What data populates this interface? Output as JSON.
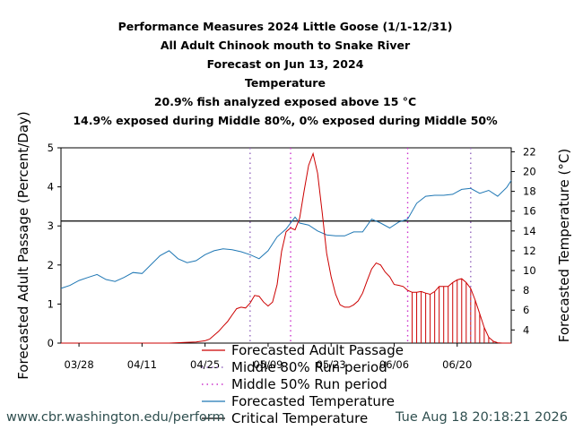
{
  "chart_data": {
    "type": "line",
    "title": [
      "Performance Measures 2024 Little Goose (1/1-12/31)",
      "All Adult Chinook mouth to Snake River",
      "Forecast on Jun 13, 2024",
      "Temperature",
      "20.9% fish analyzed exposed above 15 °C",
      "14.9% exposed during Middle 80%, 0% exposed during Middle 50%"
    ],
    "ylabel": "Forecasted Adult Passage (Percent/Day)",
    "y2label": "Forecasted Temperature (°C)",
    "xlim": [
      0,
      100
    ],
    "ylim": [
      0,
      5
    ],
    "y2lim": [
      2.67,
      22.4
    ],
    "x_ticks": [
      {
        "x": 4,
        "label": "03/28"
      },
      {
        "x": 18,
        "label": "04/11"
      },
      {
        "x": 32,
        "label": "04/25"
      },
      {
        "x": 46,
        "label": "05/09"
      },
      {
        "x": 60,
        "label": "05/23"
      },
      {
        "x": 74,
        "label": "06/06"
      },
      {
        "x": 88,
        "label": "06/20"
      }
    ],
    "y_ticks": [
      0,
      1,
      2,
      3,
      4,
      5
    ],
    "y2_ticks": [
      4,
      6,
      8,
      10,
      12,
      14,
      16,
      18,
      20,
      22
    ],
    "run_period_80": [
      42,
      91
    ],
    "run_period_50": [
      51,
      77
    ],
    "critical_temperature": 15,
    "forecast_start_x": 78,
    "series": [
      {
        "name": "Forecasted Adult Passage",
        "color": "#cc0000",
        "axis": "left",
        "x": [
          0,
          20,
          24,
          28,
          30,
          32,
          33,
          34,
          35,
          36,
          37,
          38,
          39,
          40,
          41,
          42,
          43,
          44,
          45,
          46,
          47,
          48,
          49,
          50,
          51,
          52,
          53,
          54,
          55,
          56,
          57,
          58,
          59,
          60,
          61,
          62,
          63,
          64,
          65,
          66,
          67,
          68,
          69,
          70,
          71,
          72,
          73,
          74,
          75,
          76,
          77,
          78,
          79,
          80,
          81,
          82,
          83,
          84,
          85,
          86,
          87,
          88,
          89,
          90,
          91,
          92,
          93,
          94,
          95,
          96,
          97,
          98,
          99,
          100
        ],
        "values": [
          0,
          0,
          0,
          0.02,
          0.03,
          0.06,
          0.1,
          0.2,
          0.3,
          0.43,
          0.55,
          0.72,
          0.88,
          0.92,
          0.9,
          1.02,
          1.22,
          1.2,
          1.05,
          0.95,
          1.05,
          1.5,
          2.35,
          2.85,
          2.95,
          2.9,
          3.2,
          3.9,
          4.55,
          4.85,
          4.35,
          3.35,
          2.3,
          1.7,
          1.25,
          0.98,
          0.92,
          0.92,
          0.98,
          1.08,
          1.28,
          1.6,
          1.9,
          2.05,
          2.0,
          1.82,
          1.7,
          1.5,
          1.48,
          1.45,
          1.35,
          1.3,
          1.3,
          1.32,
          1.28,
          1.25,
          1.32,
          1.45,
          1.45,
          1.45,
          1.55,
          1.62,
          1.65,
          1.55,
          1.4,
          1.1,
          0.75,
          0.4,
          0.15,
          0.05,
          0.01,
          0,
          0,
          0
        ]
      },
      {
        "name": "Forecasted Temperature",
        "color": "#1f77b4",
        "axis": "right",
        "x": [
          0,
          2,
          4,
          6,
          8,
          10,
          12,
          14,
          16,
          18,
          20,
          22,
          24,
          26,
          28,
          30,
          32,
          34,
          36,
          38,
          40,
          42,
          44,
          46,
          48,
          50,
          52,
          53,
          55,
          57,
          59,
          61,
          63,
          65,
          67,
          69,
          71,
          73,
          75,
          77,
          79,
          81,
          83,
          85,
          87,
          89,
          91,
          93,
          95,
          97,
          99,
          100
        ],
        "values": [
          8.2,
          8.5,
          9.0,
          9.3,
          9.6,
          9.1,
          8.9,
          9.3,
          9.8,
          9.7,
          10.6,
          11.5,
          12.0,
          11.2,
          10.8,
          11.0,
          11.6,
          12.0,
          12.2,
          12.1,
          11.9,
          11.6,
          11.2,
          12.0,
          13.4,
          14.2,
          15.4,
          14.8,
          14.6,
          14.0,
          13.6,
          13.5,
          13.5,
          13.9,
          13.9,
          15.2,
          14.8,
          14.3,
          14.9,
          15.2,
          16.8,
          17.5,
          17.6,
          17.6,
          17.7,
          18.2,
          18.3,
          17.8,
          18.1,
          17.5,
          18.4,
          19.1
        ]
      }
    ],
    "legend": {
      "placement": "bottom-center",
      "entries": [
        {
          "label": "Forecasted Adult Passage",
          "style": "solid",
          "color": "#cc0000"
        },
        {
          "label": "Middle 80% Run period",
          "style": "dotted",
          "color": "#9467bd"
        },
        {
          "label": "Middle 50% Run period",
          "style": "dotted",
          "color": "#cc33cc"
        },
        {
          "label": "Forecasted Temperature",
          "style": "solid",
          "color": "#1f77b4"
        },
        {
          "label": "Critical Temperature",
          "style": "solid",
          "color": "#000000"
        }
      ]
    }
  },
  "footer": {
    "left": "www.cbr.washington.edu/perform",
    "right": "Tue Aug 18 20:18:21 2026"
  }
}
